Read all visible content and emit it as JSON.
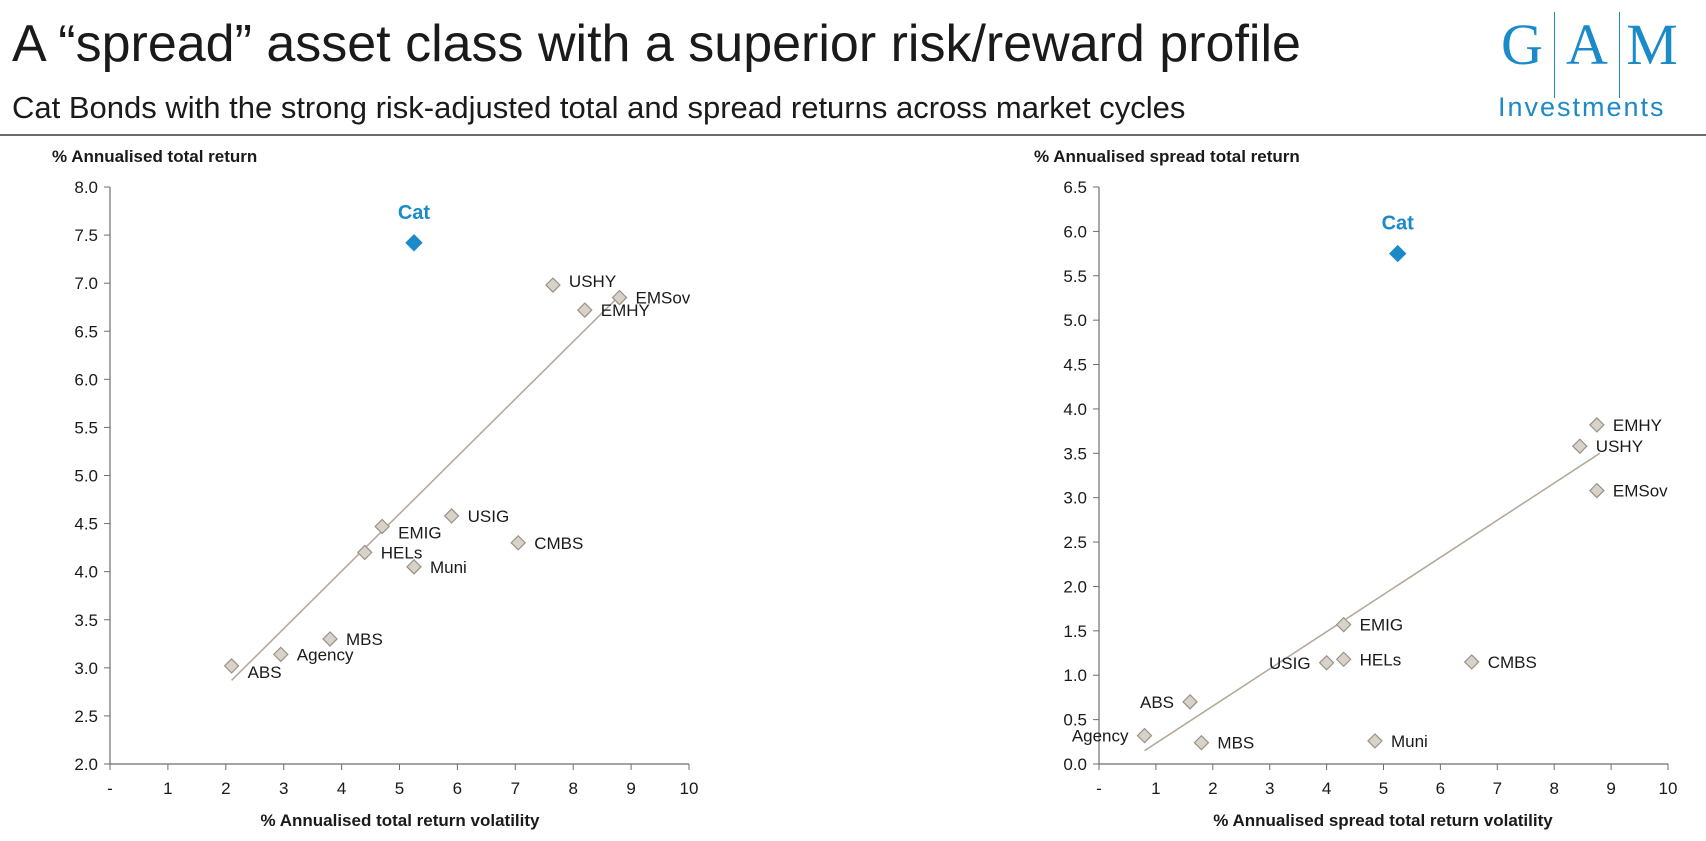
{
  "header": {
    "title": "A “spread” asset class with a superior risk/reward profile",
    "subtitle": "Cat Bonds with the strong risk-adjusted total and spread returns across market cycles"
  },
  "logo": {
    "letters": [
      "G",
      "A",
      "M"
    ],
    "sub": "Investments",
    "color": "#1b8ac8"
  },
  "colors": {
    "highlight": "#1b8ac8",
    "marker": "#d8d2c8",
    "marker_stroke": "#9a9288",
    "trend": "#b5aa9c",
    "axis": "#6e6e6e"
  },
  "chart_data": [
    {
      "type": "scatter",
      "ylabel": "% Annualised total return",
      "xlabel": "% Annualised total return volatility",
      "xlim": [
        0,
        10
      ],
      "ylim": [
        2.0,
        8.0
      ],
      "x_ticks": [
        "-",
        "1",
        "2",
        "3",
        "4",
        "5",
        "6",
        "7",
        "8",
        "9",
        "10"
      ],
      "y_ticks": [
        "2.0",
        "2.5",
        "3.0",
        "3.5",
        "4.0",
        "4.5",
        "5.0",
        "5.5",
        "6.0",
        "6.5",
        "7.0",
        "7.5",
        "8.0"
      ],
      "highlight": {
        "label": "Cat",
        "x": 5.25,
        "y": 7.42
      },
      "points": [
        {
          "label": "USHY",
          "x": 7.65,
          "y": 6.98,
          "pos": "right-up"
        },
        {
          "label": "EMSov",
          "x": 8.8,
          "y": 6.85,
          "pos": "right"
        },
        {
          "label": "EMHY",
          "x": 8.2,
          "y": 6.72,
          "pos": "right"
        },
        {
          "label": "USIG",
          "x": 5.9,
          "y": 4.58,
          "pos": "right"
        },
        {
          "label": "EMIG",
          "x": 4.7,
          "y": 4.47,
          "pos": "right-down"
        },
        {
          "label": "CMBS",
          "x": 7.05,
          "y": 4.3,
          "pos": "right"
        },
        {
          "label": "HELs",
          "x": 4.4,
          "y": 4.2,
          "pos": "right"
        },
        {
          "label": "Muni",
          "x": 5.25,
          "y": 4.05,
          "pos": "right"
        },
        {
          "label": "MBS",
          "x": 3.8,
          "y": 3.3,
          "pos": "right"
        },
        {
          "label": "Agency",
          "x": 2.95,
          "y": 3.14,
          "pos": "right"
        },
        {
          "label": "ABS",
          "x": 2.1,
          "y": 3.02,
          "pos": "right-down"
        }
      ],
      "trendline": {
        "x": [
          2.1,
          8.85
        ],
        "y": [
          2.87,
          6.9
        ]
      }
    },
    {
      "type": "scatter",
      "ylabel": "% Annualised spread total return",
      "xlabel": "% Annualised spread total return volatility",
      "xlim": [
        0,
        10
      ],
      "ylim": [
        0.0,
        6.5
      ],
      "x_ticks": [
        "-",
        "1",
        "2",
        "3",
        "4",
        "5",
        "6",
        "7",
        "8",
        "9",
        "10"
      ],
      "y_ticks": [
        "0.0",
        "0.5",
        "1.0",
        "1.5",
        "2.0",
        "2.5",
        "3.0",
        "3.5",
        "4.0",
        "4.5",
        "5.0",
        "5.5",
        "6.0",
        "6.5"
      ],
      "highlight": {
        "label": "Cat",
        "x": 5.25,
        "y": 5.75
      },
      "points": [
        {
          "label": "EMHY",
          "x": 8.75,
          "y": 3.82,
          "pos": "right"
        },
        {
          "label": "USHY",
          "x": 8.45,
          "y": 3.58,
          "pos": "right"
        },
        {
          "label": "EMSov",
          "x": 8.75,
          "y": 3.08,
          "pos": "right"
        },
        {
          "label": "EMIG",
          "x": 4.3,
          "y": 1.57,
          "pos": "right"
        },
        {
          "label": "USIG",
          "x": 4.0,
          "y": 1.14,
          "pos": "left"
        },
        {
          "label": "HELs",
          "x": 4.3,
          "y": 1.18,
          "pos": "right"
        },
        {
          "label": "CMBS",
          "x": 6.55,
          "y": 1.15,
          "pos": "right"
        },
        {
          "label": "ABS",
          "x": 1.6,
          "y": 0.7,
          "pos": "left"
        },
        {
          "label": "Agency",
          "x": 0.8,
          "y": 0.32,
          "pos": "left"
        },
        {
          "label": "MBS",
          "x": 1.8,
          "y": 0.24,
          "pos": "right"
        },
        {
          "label": "Muni",
          "x": 4.85,
          "y": 0.26,
          "pos": "right"
        }
      ],
      "trendline": {
        "x": [
          0.8,
          8.8
        ],
        "y": [
          0.15,
          3.5
        ]
      }
    }
  ]
}
